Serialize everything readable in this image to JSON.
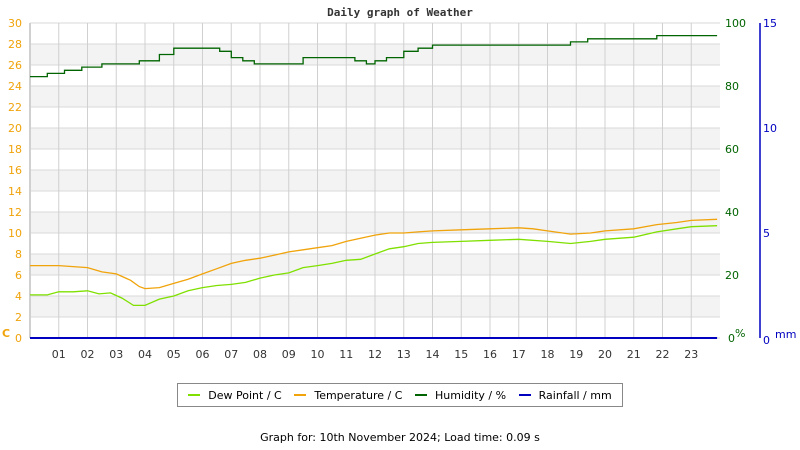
{
  "chart_data": {
    "type": "line",
    "title": "Daily graph of Weather",
    "xlabel": "",
    "x_ticks": [
      "01",
      "02",
      "03",
      "04",
      "05",
      "06",
      "07",
      "08",
      "09",
      "10",
      "11",
      "12",
      "13",
      "14",
      "15",
      "16",
      "17",
      "18",
      "19",
      "20",
      "21",
      "22",
      "23"
    ],
    "axes": {
      "left": {
        "label": "C",
        "ticks": [
          0,
          2,
          4,
          6,
          8,
          10,
          12,
          14,
          16,
          18,
          20,
          22,
          24,
          26,
          28,
          30
        ],
        "range": [
          0,
          30
        ],
        "color": "#f0a30a"
      },
      "right1": {
        "label": "%",
        "ticks": [
          0,
          20,
          40,
          60,
          80,
          100
        ],
        "range": [
          0,
          100
        ],
        "color": "#006400"
      },
      "right2": {
        "label": "mm",
        "ticks": [
          0,
          5,
          10,
          15
        ],
        "range": [
          0,
          15
        ],
        "color": "#0000c0"
      }
    },
    "grid": true,
    "legend_position": "bottom",
    "series": [
      {
        "name": "Dew Point / C",
        "color": "#7fe000",
        "axis": "left",
        "x": [
          0,
          0.6,
          1,
          1.5,
          2,
          2.4,
          2.8,
          3.2,
          3.6,
          4,
          4.5,
          5,
          5.5,
          6,
          6.5,
          7,
          7.5,
          8,
          8.5,
          9,
          9.5,
          10,
          10.5,
          11,
          11.5,
          12,
          12.5,
          13,
          13.5,
          14,
          15,
          16,
          17,
          18,
          18.8,
          19.5,
          20,
          21,
          21.8,
          22.5,
          23,
          23.9
        ],
        "values": [
          4.1,
          4.1,
          4.4,
          4.4,
          4.5,
          4.2,
          4.3,
          3.8,
          3.1,
          3.1,
          3.7,
          4.0,
          4.5,
          4.8,
          5.0,
          5.1,
          5.3,
          5.7,
          6.0,
          6.2,
          6.7,
          6.9,
          7.1,
          7.4,
          7.5,
          8.0,
          8.5,
          8.7,
          9.0,
          9.1,
          9.2,
          9.3,
          9.4,
          9.2,
          9.0,
          9.2,
          9.4,
          9.6,
          10.1,
          10.4,
          10.6,
          10.7
        ]
      },
      {
        "name": "Temperature / C",
        "color": "#f0a30a",
        "axis": "left",
        "x": [
          0,
          1,
          1.5,
          2,
          2.5,
          3,
          3.5,
          3.8,
          4,
          4.5,
          5,
          5.5,
          6,
          6.5,
          7,
          7.5,
          8,
          8.5,
          9,
          9.5,
          10,
          10.5,
          11,
          11.5,
          12,
          12.5,
          13,
          13.5,
          14,
          15,
          16,
          17,
          17.5,
          18,
          18.8,
          19.5,
          20,
          21,
          21.8,
          22.5,
          23,
          23.9
        ],
        "values": [
          6.9,
          6.9,
          6.8,
          6.7,
          6.3,
          6.1,
          5.5,
          4.9,
          4.7,
          4.8,
          5.2,
          5.6,
          6.1,
          6.6,
          7.1,
          7.4,
          7.6,
          7.9,
          8.2,
          8.4,
          8.6,
          8.8,
          9.2,
          9.5,
          9.8,
          10.0,
          10.0,
          10.1,
          10.2,
          10.3,
          10.4,
          10.5,
          10.4,
          10.2,
          9.9,
          10.0,
          10.2,
          10.4,
          10.8,
          11.0,
          11.2,
          11.3
        ]
      },
      {
        "name": "Humidity / %",
        "color": "#006400",
        "axis": "right1",
        "x": [
          0,
          0.6,
          1.2,
          1.8,
          2.5,
          3.2,
          3.8,
          4.5,
          5,
          6.1,
          6.6,
          7,
          7.4,
          7.8,
          8.3,
          9,
          9.5,
          10,
          10.4,
          11,
          11.3,
          11.7,
          12,
          12.4,
          13,
          13.5,
          14,
          15,
          16,
          17,
          18,
          18.8,
          19.4,
          20,
          21,
          21.8,
          22.5,
          23.9
        ],
        "values": [
          83,
          84,
          85,
          86,
          87,
          87,
          88,
          90,
          92,
          92,
          91,
          89,
          88,
          87,
          87,
          87,
          89,
          89,
          89,
          89,
          88,
          87,
          88,
          89,
          91,
          92,
          93,
          93,
          93,
          93,
          93,
          94,
          95,
          95,
          95,
          96,
          96,
          96
        ]
      },
      {
        "name": "Rainfall / mm",
        "color": "#0000c0",
        "axis": "right2",
        "x": [
          0,
          23.9
        ],
        "values": [
          0,
          0
        ]
      }
    ]
  },
  "title": "Daily graph of Weather",
  "legend": [
    {
      "label": "Dew Point / C",
      "color": "#7fe000"
    },
    {
      "label": "Temperature / C",
      "color": "#f0a30a"
    },
    {
      "label": "Humidity / %",
      "color": "#006400"
    },
    {
      "label": "Rainfall / mm",
      "color": "#0000c0"
    }
  ],
  "footer": "Graph for: 10th November 2024; Load time: 0.09 s"
}
